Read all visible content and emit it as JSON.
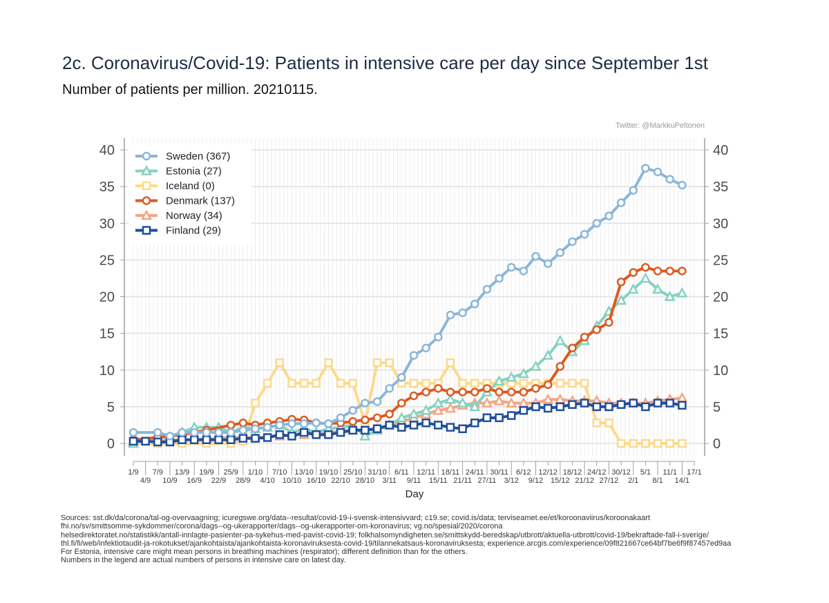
{
  "header": {
    "title": "2c. Coronavirus/Covid-19: Patients in intensive care per day since September 1st",
    "subtitle": "Number of patients per million. 20210115.",
    "credit": "Twitter: @MarkkuPeltonen"
  },
  "footer": {
    "lines": [
      "Sources: sst.dk/da/corona/tal-og-overvaagning; icuregswe.org/data--resultat/covid-19-i-svensk-intensivvard; c19.se; covid.is/data;  terviseamet.ee/et/koroonaviirus/koroonakaart",
      "fhi.no/sv/smittsomme-sykdommer/corona/dags--og-ukerapporter/dags--og-ukerapporter-om-koronavirus; vg.no/spesial/2020/corona",
      "helsedirektoratet.no/statistikk/antall-innlagte-pasienter-pa-sykehus-med-pavist-covid-19; folkhalsomyndigheten.se/smittskydd-beredskap/utbrott/aktuella-utbrott/covid-19/bekraftade-fall-i-sverige/",
      "thl.fi/fi/web/infektiotaudit-ja-rokotukset/ajankohtaista/ajankohtaista-koronaviruksesta-covid-19/tilannekatsaus-koronaviruksesta; experience.arcgis.com/experience/09f821667ce64bf7be6f9f87457ed9aa",
      "For Estonia, intensive care might mean persons in breathing machines (respirator); different definition than for the others.",
      "Numbers in the legend are actual numbers of persons in intensive care on latest day."
    ]
  },
  "chart_data": {
    "type": "line",
    "xlabel": "Day",
    "ylabel": "",
    "ylim": [
      0,
      40
    ],
    "yticks": [
      0,
      5,
      10,
      15,
      20,
      25,
      30,
      35,
      40
    ],
    "grid": true,
    "legend_position": "top-left",
    "x_ticks_row1": [
      "1/9",
      "7/9",
      "13/9",
      "19/9",
      "25/9",
      "1/10",
      "7/10",
      "13/10",
      "19/10",
      "25/10",
      "31/10",
      "6/11",
      "12/11",
      "18/11",
      "24/11",
      "30/11",
      "6/12",
      "12/12",
      "18/12",
      "24/12",
      "30/12",
      "5/1",
      "11/1",
      "17/1"
    ],
    "x_ticks_row2": [
      "4/9",
      "10/9",
      "16/9",
      "22/9",
      "28/9",
      "4/10",
      "10/10",
      "16/10",
      "22/10",
      "28/10",
      "3/11",
      "9/11",
      "15/11",
      "21/11",
      "27/11",
      "3/12",
      "9/12",
      "15/12",
      "21/12",
      "27/12",
      "2/1",
      "8/1",
      "14/1"
    ],
    "series": [
      {
        "name": "Sweden (367)",
        "color": "#8ab6d9",
        "marker": "circle",
        "points": [
          [
            "1/9",
            1.5
          ],
          [
            "7/9",
            1.5
          ],
          [
            "10/9",
            1.0
          ],
          [
            "13/9",
            1.5
          ],
          [
            "16/9",
            1.5
          ],
          [
            "19/9",
            1.5
          ],
          [
            "22/9",
            1.5
          ],
          [
            "25/9",
            1.5
          ],
          [
            "28/9",
            1.8
          ],
          [
            "1/10",
            2.0
          ],
          [
            "4/10",
            2.2
          ],
          [
            "7/10",
            2.5
          ],
          [
            "10/10",
            2.7
          ],
          [
            "13/10",
            2.7
          ],
          [
            "16/10",
            2.8
          ],
          [
            "19/10",
            2.7
          ],
          [
            "22/10",
            3.5
          ],
          [
            "25/10",
            4.5
          ],
          [
            "28/10",
            5.5
          ],
          [
            "31/10",
            5.7
          ],
          [
            "3/11",
            7.5
          ],
          [
            "6/11",
            9.0
          ],
          [
            "9/11",
            12.0
          ],
          [
            "12/11",
            13.0
          ],
          [
            "15/11",
            14.5
          ],
          [
            "18/11",
            17.5
          ],
          [
            "21/11",
            17.8
          ],
          [
            "24/11",
            19.0
          ],
          [
            "27/11",
            21.0
          ],
          [
            "30/11",
            22.5
          ],
          [
            "3/12",
            24.0
          ],
          [
            "6/12",
            23.5
          ],
          [
            "9/12",
            25.5
          ],
          [
            "12/12",
            24.5
          ],
          [
            "15/12",
            26.0
          ],
          [
            "18/12",
            27.5
          ],
          [
            "21/12",
            28.5
          ],
          [
            "24/12",
            30.0
          ],
          [
            "27/12",
            31.0
          ],
          [
            "30/12",
            32.8
          ],
          [
            "2/1",
            34.5
          ],
          [
            "5/1",
            37.5
          ],
          [
            "8/1",
            37.0
          ],
          [
            "11/1",
            36.0
          ],
          [
            "14/1",
            35.2
          ]
        ]
      },
      {
        "name": "Estonia (27)",
        "color": "#86d1c1",
        "marker": "triangle",
        "points": [
          [
            "1/9",
            0.0
          ],
          [
            "7/9",
            1.0
          ],
          [
            "10/9",
            0.8
          ],
          [
            "13/9",
            1.5
          ],
          [
            "16/9",
            2.2
          ],
          [
            "19/9",
            2.2
          ],
          [
            "22/9",
            2.2
          ],
          [
            "25/9",
            1.5
          ],
          [
            "28/9",
            2.2
          ],
          [
            "1/10",
            2.0
          ],
          [
            "4/10",
            2.2
          ],
          [
            "7/10",
            2.5
          ],
          [
            "10/10",
            1.5
          ],
          [
            "13/10",
            2.0
          ],
          [
            "16/10",
            1.5
          ],
          [
            "19/10",
            2.0
          ],
          [
            "22/10",
            2.2
          ],
          [
            "25/10",
            2.5
          ],
          [
            "28/10",
            1.0
          ],
          [
            "31/10",
            1.8
          ],
          [
            "3/11",
            2.5
          ],
          [
            "6/11",
            3.5
          ],
          [
            "9/11",
            4.0
          ],
          [
            "12/11",
            4.5
          ],
          [
            "15/11",
            5.5
          ],
          [
            "18/11",
            6.0
          ],
          [
            "21/11",
            5.5
          ],
          [
            "24/11",
            5.0
          ],
          [
            "27/11",
            7.0
          ],
          [
            "30/11",
            8.5
          ],
          [
            "3/12",
            9.0
          ],
          [
            "6/12",
            9.5
          ],
          [
            "9/12",
            10.5
          ],
          [
            "12/12",
            12.0
          ],
          [
            "15/12",
            14.0
          ],
          [
            "18/12",
            12.5
          ],
          [
            "21/12",
            14.0
          ],
          [
            "24/12",
            16.0
          ],
          [
            "27/12",
            18.0
          ],
          [
            "30/12",
            19.5
          ],
          [
            "2/1",
            21.0
          ],
          [
            "5/1",
            22.5
          ],
          [
            "8/1",
            21.0
          ],
          [
            "11/1",
            20.0
          ],
          [
            "14/1",
            20.5
          ]
        ]
      },
      {
        "name": "Iceland (0)",
        "color": "#fcd98b",
        "marker": "square",
        "points": [
          [
            "1/9",
            0.0
          ],
          [
            "7/9",
            0.0
          ],
          [
            "13/9",
            0.0
          ],
          [
            "19/9",
            0.0
          ],
          [
            "25/9",
            0.0
          ],
          [
            "28/9",
            0.3
          ],
          [
            "1/10",
            5.5
          ],
          [
            "4/10",
            8.2
          ],
          [
            "7/10",
            11.0
          ],
          [
            "10/10",
            8.2
          ],
          [
            "13/10",
            8.2
          ],
          [
            "16/10",
            8.2
          ],
          [
            "19/10",
            11.0
          ],
          [
            "22/10",
            8.2
          ],
          [
            "25/10",
            8.2
          ],
          [
            "28/10",
            2.8
          ],
          [
            "31/10",
            11.0
          ],
          [
            "3/11",
            11.0
          ],
          [
            "6/11",
            8.2
          ],
          [
            "9/11",
            8.2
          ],
          [
            "12/11",
            8.2
          ],
          [
            "15/11",
            8.2
          ],
          [
            "18/11",
            11.0
          ],
          [
            "21/11",
            8.2
          ],
          [
            "24/11",
            8.2
          ],
          [
            "27/11",
            8.2
          ],
          [
            "30/11",
            8.2
          ],
          [
            "3/12",
            8.2
          ],
          [
            "6/12",
            8.2
          ],
          [
            "9/12",
            8.2
          ],
          [
            "12/12",
            8.2
          ],
          [
            "15/12",
            8.2
          ],
          [
            "18/12",
            8.2
          ],
          [
            "21/12",
            8.2
          ],
          [
            "24/12",
            2.8
          ],
          [
            "27/12",
            2.8
          ],
          [
            "30/12",
            0.0
          ],
          [
            "2/1",
            0.0
          ],
          [
            "5/1",
            0.0
          ],
          [
            "8/1",
            0.0
          ],
          [
            "11/1",
            0.0
          ],
          [
            "14/1",
            0.0
          ]
        ]
      },
      {
        "name": "Denmark (137)",
        "color": "#dc5a1f",
        "marker": "circle",
        "points": [
          [
            "1/9",
            0.5
          ],
          [
            "7/9",
            0.8
          ],
          [
            "13/9",
            1.2
          ],
          [
            "19/9",
            1.8
          ],
          [
            "25/9",
            2.5
          ],
          [
            "28/9",
            2.8
          ],
          [
            "1/10",
            2.5
          ],
          [
            "4/10",
            2.8
          ],
          [
            "7/10",
            3.0
          ],
          [
            "10/10",
            3.3
          ],
          [
            "13/10",
            3.2
          ],
          [
            "16/10",
            2.8
          ],
          [
            "19/10",
            2.7
          ],
          [
            "22/10",
            2.8
          ],
          [
            "25/10",
            3.0
          ],
          [
            "28/10",
            3.2
          ],
          [
            "31/10",
            3.5
          ],
          [
            "3/11",
            4.0
          ],
          [
            "6/11",
            5.5
          ],
          [
            "9/11",
            6.5
          ],
          [
            "12/11",
            7.0
          ],
          [
            "15/11",
            7.5
          ],
          [
            "18/11",
            7.0
          ],
          [
            "21/11",
            7.0
          ],
          [
            "24/11",
            7.0
          ],
          [
            "27/11",
            7.5
          ],
          [
            "30/11",
            7.0
          ],
          [
            "3/12",
            7.0
          ],
          [
            "6/12",
            7.0
          ],
          [
            "9/12",
            7.5
          ],
          [
            "12/12",
            8.0
          ],
          [
            "15/12",
            10.5
          ],
          [
            "18/12",
            13.0
          ],
          [
            "21/12",
            14.5
          ],
          [
            "24/12",
            15.5
          ],
          [
            "27/12",
            16.5
          ],
          [
            "30/12",
            22.0
          ],
          [
            "2/1",
            23.3
          ],
          [
            "5/1",
            24.0
          ],
          [
            "8/1",
            23.5
          ],
          [
            "11/1",
            23.5
          ],
          [
            "14/1",
            23.5
          ]
        ]
      },
      {
        "name": "Norway  (34)",
        "color": "#f4a582",
        "marker": "triangle",
        "points": [
          [
            "1/9",
            0.3
          ],
          [
            "7/9",
            0.4
          ],
          [
            "13/9",
            0.5
          ],
          [
            "19/9",
            0.6
          ],
          [
            "25/9",
            0.8
          ],
          [
            "1/10",
            0.8
          ],
          [
            "7/10",
            1.0
          ],
          [
            "13/10",
            1.2
          ],
          [
            "19/10",
            1.5
          ],
          [
            "25/10",
            1.8
          ],
          [
            "31/10",
            2.0
          ],
          [
            "3/11",
            2.5
          ],
          [
            "6/11",
            3.0
          ],
          [
            "9/11",
            3.5
          ],
          [
            "12/11",
            4.0
          ],
          [
            "15/11",
            4.5
          ],
          [
            "18/11",
            4.8
          ],
          [
            "21/11",
            5.2
          ],
          [
            "24/11",
            5.5
          ],
          [
            "27/11",
            5.5
          ],
          [
            "30/11",
            5.8
          ],
          [
            "3/12",
            5.5
          ],
          [
            "6/12",
            5.5
          ],
          [
            "9/12",
            5.5
          ],
          [
            "12/12",
            6.0
          ],
          [
            "15/12",
            6.0
          ],
          [
            "18/12",
            5.8
          ],
          [
            "21/12",
            5.8
          ],
          [
            "24/12",
            5.8
          ],
          [
            "27/12",
            5.5
          ],
          [
            "30/12",
            5.5
          ],
          [
            "2/1",
            5.5
          ],
          [
            "5/1",
            5.5
          ],
          [
            "8/1",
            5.8
          ],
          [
            "11/1",
            6.0
          ],
          [
            "14/1",
            6.2
          ]
        ]
      },
      {
        "name": "Finland (29)",
        "color": "#1f4e9c",
        "marker": "square",
        "points": [
          [
            "1/9",
            0.3
          ],
          [
            "4/9",
            0.3
          ],
          [
            "7/9",
            0.2
          ],
          [
            "10/9",
            0.2
          ],
          [
            "13/9",
            0.5
          ],
          [
            "16/9",
            0.5
          ],
          [
            "19/9",
            0.5
          ],
          [
            "22/9",
            0.5
          ],
          [
            "25/9",
            0.5
          ],
          [
            "28/9",
            0.7
          ],
          [
            "1/10",
            0.7
          ],
          [
            "4/10",
            0.8
          ],
          [
            "7/10",
            1.2
          ],
          [
            "10/10",
            1.0
          ],
          [
            "13/10",
            1.5
          ],
          [
            "16/10",
            1.2
          ],
          [
            "19/10",
            1.2
          ],
          [
            "22/10",
            1.5
          ],
          [
            "25/10",
            1.8
          ],
          [
            "28/10",
            1.8
          ],
          [
            "31/10",
            2.0
          ],
          [
            "3/11",
            2.5
          ],
          [
            "6/11",
            2.2
          ],
          [
            "9/11",
            2.5
          ],
          [
            "12/11",
            2.8
          ],
          [
            "15/11",
            2.5
          ],
          [
            "18/11",
            2.2
          ],
          [
            "21/11",
            2.0
          ],
          [
            "24/11",
            2.8
          ],
          [
            "27/11",
            3.5
          ],
          [
            "30/11",
            3.5
          ],
          [
            "3/12",
            3.8
          ],
          [
            "6/12",
            4.5
          ],
          [
            "9/12",
            5.0
          ],
          [
            "12/12",
            4.8
          ],
          [
            "15/12",
            5.0
          ],
          [
            "18/12",
            5.3
          ],
          [
            "21/12",
            5.5
          ],
          [
            "24/12",
            5.0
          ],
          [
            "27/12",
            5.0
          ],
          [
            "30/12",
            5.3
          ],
          [
            "2/1",
            5.5
          ],
          [
            "5/1",
            5.0
          ],
          [
            "8/1",
            5.5
          ],
          [
            "11/1",
            5.5
          ],
          [
            "14/1",
            5.2
          ]
        ]
      }
    ]
  }
}
